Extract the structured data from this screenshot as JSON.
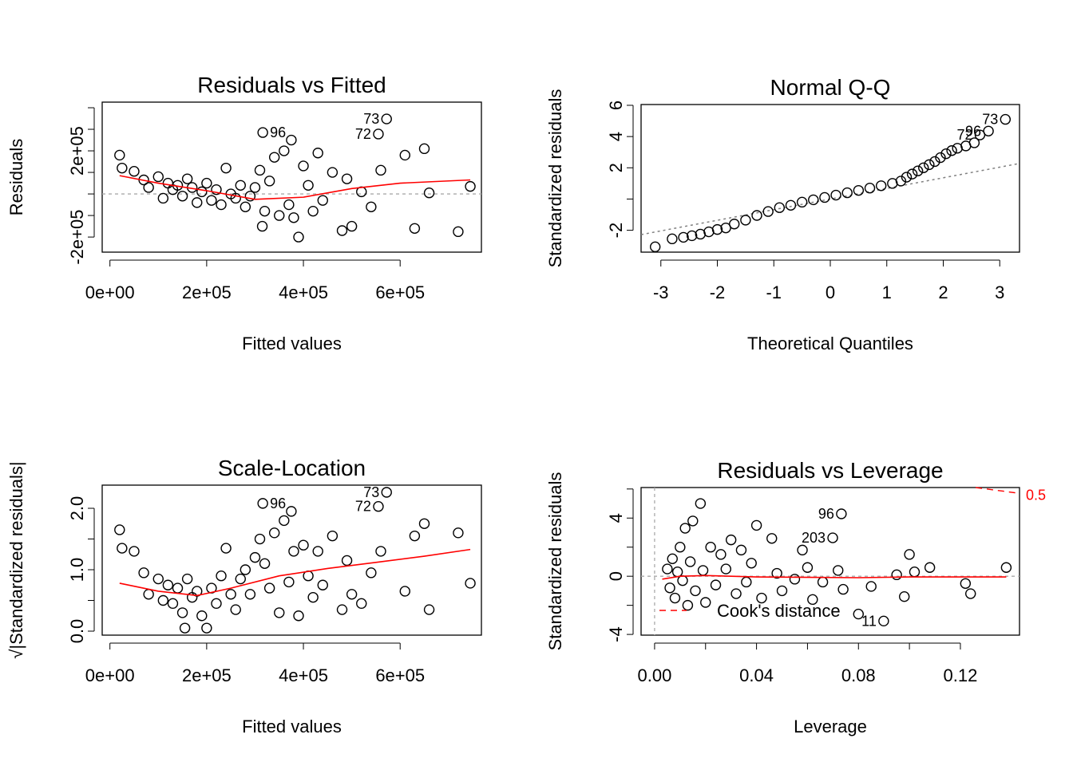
{
  "chart_data": [
    {
      "type": "scatter",
      "title": "Residuals vs Fitted",
      "x_label": "Fitted values",
      "y_label": "Residuals",
      "xlim": [
        -16000,
        768000
      ],
      "ylim": [
        -270000,
        426000
      ],
      "xticks": [
        {
          "value": 0,
          "label": "0e+00"
        },
        {
          "value": 200000,
          "label": "2e+05"
        },
        {
          "value": 400000,
          "label": "4e+05"
        },
        {
          "value": 600000,
          "label": "6e+05"
        }
      ],
      "yticks": [
        {
          "value": -200000,
          "label": "-2e+05"
        },
        {
          "value": -100000
        },
        {
          "value": 0
        },
        {
          "value": 100000
        },
        {
          "value": 200000,
          "label": "2e+05"
        },
        {
          "value": 300000
        },
        {
          "value": 400000
        }
      ],
      "point_color": "#000000",
      "points": [
        [
          20000,
          180000
        ],
        [
          25000,
          120000
        ],
        [
          50000,
          105000
        ],
        [
          70000,
          65000
        ],
        [
          80000,
          30000
        ],
        [
          100000,
          80000
        ],
        [
          110000,
          -20000
        ],
        [
          120000,
          50000
        ],
        [
          130000,
          20000
        ],
        [
          140000,
          40000
        ],
        [
          150000,
          -10000
        ],
        [
          160000,
          70000
        ],
        [
          170000,
          30000
        ],
        [
          180000,
          -40000
        ],
        [
          190000,
          10000
        ],
        [
          200000,
          50000
        ],
        [
          210000,
          -30000
        ],
        [
          220000,
          20000
        ],
        [
          230000,
          -50000
        ],
        [
          240000,
          120000
        ],
        [
          250000,
          0
        ],
        [
          260000,
          -20000
        ],
        [
          270000,
          40000
        ],
        [
          280000,
          -60000
        ],
        [
          290000,
          -10000
        ],
        [
          300000,
          30000
        ],
        [
          310000,
          110000
        ],
        [
          315000,
          -150000
        ],
        [
          320000,
          -80000
        ],
        [
          330000,
          60000
        ],
        [
          340000,
          170000
        ],
        [
          350000,
          -100000
        ],
        [
          360000,
          200000
        ],
        [
          370000,
          -50000
        ],
        [
          375000,
          250000
        ],
        [
          380000,
          -110000
        ],
        [
          390000,
          -200000
        ],
        [
          400000,
          130000
        ],
        [
          410000,
          40000
        ],
        [
          420000,
          -80000
        ],
        [
          430000,
          190000
        ],
        [
          440000,
          -30000
        ],
        [
          460000,
          100000
        ],
        [
          480000,
          -170000
        ],
        [
          490000,
          70000
        ],
        [
          500000,
          -150000
        ],
        [
          520000,
          10000
        ],
        [
          540000,
          -60000
        ],
        [
          560000,
          110000
        ],
        [
          610000,
          180000
        ],
        [
          630000,
          -160000
        ],
        [
          650000,
          210000
        ],
        [
          660000,
          5000
        ],
        [
          720000,
          -175000
        ],
        [
          745000,
          35000
        ],
        [
          572000,
          348000
        ],
        [
          555000,
          278000
        ],
        [
          316000,
          285000
        ]
      ],
      "smooth": {
        "color": "#ff0000",
        "points": [
          [
            20000,
            85000
          ],
          [
            100000,
            50000
          ],
          [
            200000,
            15000
          ],
          [
            300000,
            -25000
          ],
          [
            400000,
            -15000
          ],
          [
            500000,
            25000
          ],
          [
            600000,
            50000
          ],
          [
            745000,
            65000
          ]
        ]
      },
      "hline": {
        "value": 0,
        "color": "#aaaaaa"
      },
      "point_labels": [
        {
          "text": "73",
          "x": 572000,
          "y": 348000
        },
        {
          "text": "72",
          "x": 555000,
          "y": 278000
        },
        {
          "text": "96",
          "x": 316000,
          "y": 285000
        }
      ]
    },
    {
      "type": "qq",
      "title": "Normal Q-Q",
      "x_label": "Theoretical Quantiles",
      "y_label": "Standardized residuals",
      "xlim": [
        -3.35,
        3.35
      ],
      "ylim": [
        -3.4,
        6.05
      ],
      "xticks": [
        -3,
        -2,
        -1,
        0,
        1,
        2,
        3
      ],
      "yticks": [
        {
          "value": -2,
          "label": "-2"
        },
        {
          "value": 0
        },
        2,
        4,
        6
      ],
      "point_color": "#000000",
      "points": [
        [
          -3.1,
          -3.06
        ],
        [
          -2.8,
          -2.55
        ],
        [
          -2.6,
          -2.45
        ],
        [
          -2.45,
          -2.35
        ],
        [
          -2.3,
          -2.25
        ],
        [
          -2.15,
          -2.1
        ],
        [
          -2.0,
          -1.95
        ],
        [
          -1.85,
          -1.85
        ],
        [
          -1.7,
          -1.6
        ],
        [
          -1.5,
          -1.35
        ],
        [
          -1.3,
          -1.05
        ],
        [
          -1.1,
          -0.8
        ],
        [
          -0.9,
          -0.55
        ],
        [
          -0.7,
          -0.4
        ],
        [
          -0.5,
          -0.2
        ],
        [
          -0.3,
          -0.05
        ],
        [
          -0.1,
          0.1
        ],
        [
          0.1,
          0.25
        ],
        [
          0.3,
          0.4
        ],
        [
          0.5,
          0.55
        ],
        [
          0.7,
          0.7
        ],
        [
          0.9,
          0.85
        ],
        [
          1.1,
          1.0
        ],
        [
          1.25,
          1.15
        ],
        [
          1.35,
          1.4
        ],
        [
          1.45,
          1.6
        ],
        [
          1.55,
          1.8
        ],
        [
          1.65,
          2.0
        ],
        [
          1.75,
          2.2
        ],
        [
          1.85,
          2.4
        ],
        [
          1.95,
          2.65
        ],
        [
          2.05,
          2.9
        ],
        [
          2.15,
          3.1
        ],
        [
          2.25,
          3.25
        ],
        [
          2.4,
          3.4
        ],
        [
          2.55,
          3.6
        ],
        [
          2.65,
          4.1
        ],
        [
          2.8,
          4.35
        ],
        [
          3.1,
          5.1
        ]
      ],
      "refline": {
        "slope": 0.68,
        "intercept": 0,
        "color": "#808080"
      },
      "point_labels": [
        {
          "text": "73",
          "x": 3.1,
          "y": 5.1
        },
        {
          "text": "96",
          "x": 2.8,
          "y": 4.35
        },
        {
          "text": "72",
          "x": 2.65,
          "y": 4.1
        }
      ]
    },
    {
      "type": "scatter",
      "title": "Scale-Location",
      "x_label": "Fitted values",
      "y_label": "√|Standardized residuals|",
      "xlim": [
        -16000,
        768000
      ],
      "ylim": [
        -0.065,
        2.377
      ],
      "xticks": [
        {
          "value": 0,
          "label": "0e+00"
        },
        {
          "value": 200000,
          "label": "2e+05"
        },
        {
          "value": 400000,
          "label": "4e+05"
        },
        {
          "value": 600000,
          "label": "6e+05"
        }
      ],
      "yticks": [
        {
          "value": 0,
          "label": "0.0"
        },
        {
          "value": 0.5
        },
        {
          "value": 1,
          "label": "1.0"
        },
        {
          "value": 1.5
        },
        {
          "value": 2,
          "label": "2.0"
        }
      ],
      "point_color": "#000000",
      "points": [
        [
          20000,
          1.65
        ],
        [
          25000,
          1.35
        ],
        [
          50000,
          1.3
        ],
        [
          70000,
          0.95
        ],
        [
          80000,
          0.6
        ],
        [
          100000,
          0.85
        ],
        [
          110000,
          0.5
        ],
        [
          120000,
          0.75
        ],
        [
          130000,
          0.45
        ],
        [
          140000,
          0.7
        ],
        [
          150000,
          0.3
        ],
        [
          155000,
          0.05
        ],
        [
          160000,
          0.85
        ],
        [
          170000,
          0.55
        ],
        [
          180000,
          0.65
        ],
        [
          190000,
          0.25
        ],
        [
          200000,
          0.05
        ],
        [
          210000,
          0.7
        ],
        [
          220000,
          0.45
        ],
        [
          230000,
          0.9
        ],
        [
          240000,
          1.35
        ],
        [
          250000,
          0.6
        ],
        [
          260000,
          0.35
        ],
        [
          270000,
          0.85
        ],
        [
          280000,
          1.0
        ],
        [
          290000,
          0.6
        ],
        [
          300000,
          1.2
        ],
        [
          310000,
          1.5
        ],
        [
          320000,
          1.1
        ],
        [
          330000,
          0.7
        ],
        [
          340000,
          1.6
        ],
        [
          350000,
          0.3
        ],
        [
          360000,
          1.8
        ],
        [
          370000,
          0.8
        ],
        [
          375000,
          1.95
        ],
        [
          380000,
          1.3
        ],
        [
          390000,
          0.25
        ],
        [
          400000,
          1.4
        ],
        [
          410000,
          0.9
        ],
        [
          420000,
          0.55
        ],
        [
          430000,
          1.3
        ],
        [
          440000,
          0.75
        ],
        [
          460000,
          1.55
        ],
        [
          480000,
          0.35
        ],
        [
          490000,
          1.15
        ],
        [
          500000,
          0.6
        ],
        [
          520000,
          0.45
        ],
        [
          540000,
          0.95
        ],
        [
          560000,
          1.3
        ],
        [
          610000,
          0.65
        ],
        [
          630000,
          1.55
        ],
        [
          650000,
          1.75
        ],
        [
          660000,
          0.35
        ],
        [
          720000,
          1.6
        ],
        [
          745000,
          0.78
        ],
        [
          572000,
          2.26
        ],
        [
          555000,
          2.03
        ],
        [
          316000,
          2.08
        ]
      ],
      "smooth": {
        "color": "#ff0000",
        "points": [
          [
            20000,
            0.78
          ],
          [
            100000,
            0.65
          ],
          [
            180000,
            0.58
          ],
          [
            250000,
            0.7
          ],
          [
            350000,
            0.9
          ],
          [
            450000,
            1.02
          ],
          [
            550000,
            1.12
          ],
          [
            650000,
            1.22
          ],
          [
            745000,
            1.33
          ]
        ]
      },
      "point_labels": [
        {
          "text": "73",
          "x": 572000,
          "y": 2.26
        },
        {
          "text": "72",
          "x": 555000,
          "y": 2.03
        },
        {
          "text": "96",
          "x": 316000,
          "y": 2.08
        }
      ]
    },
    {
      "type": "scatter",
      "title": "Residuals vs Leverage",
      "x_label": "Leverage",
      "y_label": "Standardized residuals",
      "xlim": [
        -0.0053,
        0.1432
      ],
      "ylim": [
        -4.05,
        6.1
      ],
      "xticks": [
        {
          "value": 0,
          "label": "0.00"
        },
        {
          "value": 0.02
        },
        {
          "value": 0.04,
          "label": "0.04"
        },
        {
          "value": 0.06
        },
        {
          "value": 0.08,
          "label": "0.08"
        },
        {
          "value": 0.1
        },
        {
          "value": 0.12,
          "label": "0.12"
        }
      ],
      "yticks": [
        {
          "value": -4,
          "label": "-4"
        },
        {
          "value": -2
        },
        0,
        {
          "value": 2
        },
        4,
        {
          "value": 6
        }
      ],
      "point_color": "#000000",
      "points": [
        [
          0.005,
          0.5
        ],
        [
          0.006,
          -0.8
        ],
        [
          0.007,
          1.2
        ],
        [
          0.008,
          -1.5
        ],
        [
          0.009,
          0.3
        ],
        [
          0.01,
          2.0
        ],
        [
          0.011,
          -0.3
        ],
        [
          0.012,
          3.3
        ],
        [
          0.013,
          -2.0
        ],
        [
          0.014,
          1.0
        ],
        [
          0.015,
          3.8
        ],
        [
          0.016,
          -1.0
        ],
        [
          0.018,
          5.0
        ],
        [
          0.019,
          0.4
        ],
        [
          0.02,
          -1.8
        ],
        [
          0.022,
          2.0
        ],
        [
          0.024,
          -0.6
        ],
        [
          0.026,
          1.5
        ],
        [
          0.028,
          0.5
        ],
        [
          0.03,
          2.5
        ],
        [
          0.032,
          -1.2
        ],
        [
          0.034,
          1.8
        ],
        [
          0.036,
          -0.4
        ],
        [
          0.038,
          0.9
        ],
        [
          0.04,
          3.5
        ],
        [
          0.042,
          -1.5
        ],
        [
          0.046,
          2.6
        ],
        [
          0.048,
          0.2
        ],
        [
          0.05,
          -1.0
        ],
        [
          0.055,
          -0.2
        ],
        [
          0.058,
          1.8
        ],
        [
          0.06,
          0.6
        ],
        [
          0.062,
          -1.6
        ],
        [
          0.066,
          -0.4
        ],
        [
          0.072,
          0.4
        ],
        [
          0.074,
          -0.9
        ],
        [
          0.08,
          -2.6
        ],
        [
          0.085,
          -0.7
        ],
        [
          0.095,
          0.1
        ],
        [
          0.098,
          -1.4
        ],
        [
          0.1,
          1.5
        ],
        [
          0.102,
          0.3
        ],
        [
          0.108,
          0.6
        ],
        [
          0.122,
          -0.5
        ],
        [
          0.124,
          -1.2
        ],
        [
          0.138,
          0.6
        ],
        [
          0.0733,
          4.29
        ],
        [
          0.0699,
          2.64
        ],
        [
          0.0899,
          -3.08
        ]
      ],
      "smooth": {
        "color": "#ff0000",
        "points": [
          [
            0.003,
            -0.2
          ],
          [
            0.01,
            0.0
          ],
          [
            0.02,
            0.05
          ],
          [
            0.04,
            -0.05
          ],
          [
            0.08,
            -0.1
          ],
          [
            0.1,
            -0.05
          ],
          [
            0.138,
            -0.05
          ]
        ]
      },
      "hline": {
        "value": 0,
        "color": "#aaaaaa"
      },
      "vline": {
        "value": 0,
        "color": "#aaaaaa"
      },
      "cooks": {
        "label": "0.5",
        "color": "#ff0000",
        "x": [
          0.126,
          0.1432
        ],
        "y": [
          6.1,
          5.7
        ]
      },
      "legend": {
        "name": "Cook's distance",
        "color": "#ff0000",
        "position": "bottomleft"
      },
      "point_labels": [
        {
          "text": "96",
          "x": 0.0733,
          "y": 4.29
        },
        {
          "text": "203",
          "x": 0.0699,
          "y": 2.64
        },
        {
          "text": "11",
          "x": 0.0899,
          "y": -3.08
        }
      ]
    }
  ]
}
